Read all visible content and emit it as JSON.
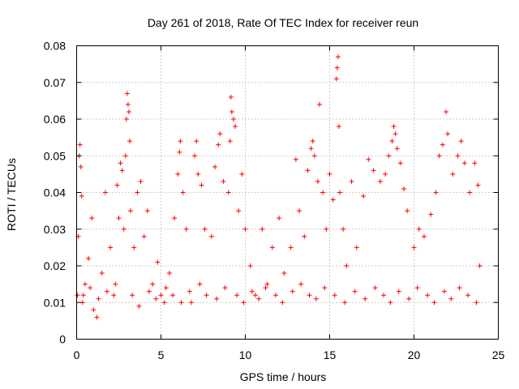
{
  "chart_data": {
    "type": "scatter",
    "title": "Day 261 of 2018, Rate Of TEC Index for receiver reun",
    "xlabel": "GPS time / hours",
    "ylabel": "ROTI / TECUs",
    "xlim": [
      0,
      25
    ],
    "ylim": [
      0,
      0.08
    ],
    "grid": true,
    "marker": "plus",
    "color": "#ff0000",
    "x_ticks": [
      {
        "value": 0,
        "label": "0"
      },
      {
        "value": 5,
        "label": "5"
      },
      {
        "value": 10,
        "label": "10"
      },
      {
        "value": 15,
        "label": "15"
      },
      {
        "value": 20,
        "label": "20"
      },
      {
        "value": 25,
        "label": "25"
      }
    ],
    "y_ticks": [
      {
        "value": 0,
        "label": "0"
      },
      {
        "value": 0.01,
        "label": "0.01"
      },
      {
        "value": 0.02,
        "label": "0.02"
      },
      {
        "value": 0.03,
        "label": "0.03"
      },
      {
        "value": 0.04,
        "label": "0.04"
      },
      {
        "value": 0.05,
        "label": "0.05"
      },
      {
        "value": 0.06,
        "label": "0.06"
      },
      {
        "value": 0.07,
        "label": "0.07"
      },
      {
        "value": 0.08,
        "label": "0.08"
      }
    ],
    "series": [
      {
        "name": "ROTI",
        "points": [
          [
            0.05,
            0.012
          ],
          [
            0.1,
            0.028
          ],
          [
            0.15,
            0.05
          ],
          [
            0.2,
            0.053
          ],
          [
            0.25,
            0.047
          ],
          [
            0.3,
            0.039
          ],
          [
            0.35,
            0.01
          ],
          [
            0.5,
            0.015
          ],
          [
            0.7,
            0.022
          ],
          [
            0.9,
            0.033
          ],
          [
            1.0,
            0.008
          ],
          [
            1.2,
            0.006
          ],
          [
            1.5,
            0.018
          ],
          [
            1.7,
            0.04
          ],
          [
            2.0,
            0.025
          ],
          [
            2.2,
            0.012
          ],
          [
            2.4,
            0.042
          ],
          [
            2.5,
            0.033
          ],
          [
            2.6,
            0.048
          ],
          [
            2.7,
            0.046
          ],
          [
            2.8,
            0.03
          ],
          [
            2.9,
            0.05
          ],
          [
            2.95,
            0.06
          ],
          [
            3.0,
            0.067
          ],
          [
            3.05,
            0.064
          ],
          [
            3.1,
            0.062
          ],
          [
            3.15,
            0.054
          ],
          [
            3.2,
            0.035
          ],
          [
            3.4,
            0.025
          ],
          [
            3.6,
            0.04
          ],
          [
            3.8,
            0.043
          ],
          [
            4.0,
            0.028
          ],
          [
            4.2,
            0.035
          ],
          [
            4.5,
            0.015
          ],
          [
            4.8,
            0.021
          ],
          [
            5.0,
            0.012
          ],
          [
            5.2,
            0.01
          ],
          [
            5.5,
            0.018
          ],
          [
            5.8,
            0.033
          ],
          [
            6.0,
            0.045
          ],
          [
            6.1,
            0.051
          ],
          [
            6.15,
            0.054
          ],
          [
            6.3,
            0.04
          ],
          [
            6.5,
            0.03
          ],
          [
            6.8,
            0.01
          ],
          [
            7.0,
            0.05
          ],
          [
            7.1,
            0.054
          ],
          [
            7.2,
            0.045
          ],
          [
            7.4,
            0.042
          ],
          [
            7.6,
            0.03
          ],
          [
            8.0,
            0.028
          ],
          [
            8.2,
            0.047
          ],
          [
            8.4,
            0.053
          ],
          [
            8.5,
            0.056
          ],
          [
            8.7,
            0.043
          ],
          [
            9.0,
            0.04
          ],
          [
            9.1,
            0.054
          ],
          [
            9.15,
            0.066
          ],
          [
            9.2,
            0.062
          ],
          [
            9.3,
            0.06
          ],
          [
            9.4,
            0.058
          ],
          [
            9.6,
            0.035
          ],
          [
            9.8,
            0.045
          ],
          [
            10.0,
            0.03
          ],
          [
            10.3,
            0.02
          ],
          [
            10.6,
            0.012
          ],
          [
            11.0,
            0.03
          ],
          [
            11.3,
            0.015
          ],
          [
            11.6,
            0.025
          ],
          [
            12.0,
            0.033
          ],
          [
            12.3,
            0.018
          ],
          [
            12.7,
            0.025
          ],
          [
            13.0,
            0.049
          ],
          [
            13.2,
            0.035
          ],
          [
            13.5,
            0.028
          ],
          [
            13.7,
            0.046
          ],
          [
            13.9,
            0.052
          ],
          [
            14.0,
            0.054
          ],
          [
            14.1,
            0.05
          ],
          [
            14.3,
            0.043
          ],
          [
            14.4,
            0.064
          ],
          [
            14.6,
            0.04
          ],
          [
            14.8,
            0.03
          ],
          [
            15.0,
            0.045
          ],
          [
            15.2,
            0.038
          ],
          [
            15.4,
            0.071
          ],
          [
            15.45,
            0.074
          ],
          [
            15.5,
            0.077
          ],
          [
            15.55,
            0.058
          ],
          [
            15.6,
            0.04
          ],
          [
            15.8,
            0.03
          ],
          [
            16.0,
            0.02
          ],
          [
            16.3,
            0.043
          ],
          [
            16.6,
            0.025
          ],
          [
            17.0,
            0.039
          ],
          [
            17.3,
            0.049
          ],
          [
            17.6,
            0.046
          ],
          [
            18.0,
            0.043
          ],
          [
            18.3,
            0.045
          ],
          [
            18.5,
            0.05
          ],
          [
            18.7,
            0.054
          ],
          [
            18.8,
            0.058
          ],
          [
            18.9,
            0.056
          ],
          [
            19.0,
            0.052
          ],
          [
            19.2,
            0.048
          ],
          [
            19.4,
            0.041
          ],
          [
            19.6,
            0.035
          ],
          [
            20.0,
            0.025
          ],
          [
            20.3,
            0.03
          ],
          [
            20.6,
            0.028
          ],
          [
            21.0,
            0.034
          ],
          [
            21.3,
            0.04
          ],
          [
            21.5,
            0.05
          ],
          [
            21.7,
            0.053
          ],
          [
            21.9,
            0.062
          ],
          [
            22.0,
            0.056
          ],
          [
            22.3,
            0.045
          ],
          [
            22.6,
            0.05
          ],
          [
            22.8,
            0.054
          ],
          [
            23.0,
            0.048
          ],
          [
            23.3,
            0.04
          ],
          [
            23.6,
            0.048
          ],
          [
            23.8,
            0.042
          ],
          [
            23.9,
            0.02
          ],
          [
            0.4,
            0.012
          ],
          [
            0.8,
            0.014
          ],
          [
            1.3,
            0.011
          ],
          [
            1.8,
            0.013
          ],
          [
            2.3,
            0.015
          ],
          [
            3.3,
            0.012
          ],
          [
            3.7,
            0.009
          ],
          [
            4.3,
            0.013
          ],
          [
            4.7,
            0.011
          ],
          [
            5.3,
            0.014
          ],
          [
            5.7,
            0.012
          ],
          [
            6.2,
            0.01
          ],
          [
            6.7,
            0.013
          ],
          [
            7.3,
            0.015
          ],
          [
            7.7,
            0.012
          ],
          [
            8.3,
            0.011
          ],
          [
            8.8,
            0.014
          ],
          [
            9.5,
            0.012
          ],
          [
            9.9,
            0.01
          ],
          [
            10.4,
            0.013
          ],
          [
            10.8,
            0.011
          ],
          [
            11.2,
            0.014
          ],
          [
            11.8,
            0.012
          ],
          [
            12.2,
            0.01
          ],
          [
            12.8,
            0.013
          ],
          [
            13.3,
            0.015
          ],
          [
            13.8,
            0.012
          ],
          [
            14.2,
            0.011
          ],
          [
            14.7,
            0.014
          ],
          [
            15.3,
            0.012
          ],
          [
            15.9,
            0.01
          ],
          [
            16.5,
            0.013
          ],
          [
            17.1,
            0.011
          ],
          [
            17.7,
            0.014
          ],
          [
            18.2,
            0.012
          ],
          [
            18.6,
            0.01
          ],
          [
            19.1,
            0.013
          ],
          [
            19.7,
            0.011
          ],
          [
            20.2,
            0.014
          ],
          [
            20.8,
            0.012
          ],
          [
            21.2,
            0.01
          ],
          [
            21.8,
            0.013
          ],
          [
            22.2,
            0.011
          ],
          [
            22.7,
            0.014
          ],
          [
            23.2,
            0.012
          ],
          [
            23.7,
            0.01
          ]
        ]
      }
    ]
  }
}
